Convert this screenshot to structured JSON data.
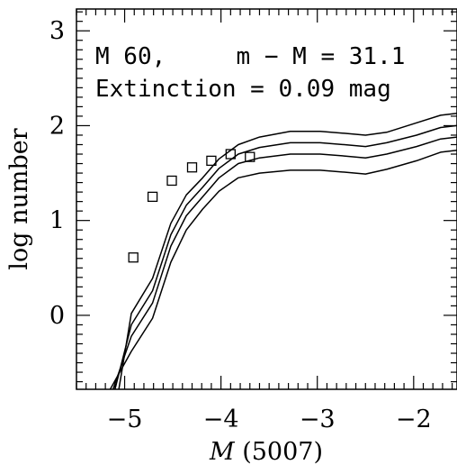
{
  "chart_data": {
    "type": "line",
    "xlabel_italic": "M",
    "xlabel_rest": " (5007)",
    "ylabel": "log number",
    "xlim": [
      -5.5,
      -1.55
    ],
    "ylim": [
      -0.78,
      3.23
    ],
    "x_ticks": [
      -5,
      -4,
      -3,
      -2
    ],
    "x_tick_labels": [
      "−5",
      "−4",
      "−3",
      "−2"
    ],
    "y_ticks": [
      0,
      1,
      2,
      3
    ],
    "y_tick_labels": [
      "0",
      "1",
      "2",
      "3"
    ],
    "annotations": [
      "M 60,     m − M = 31.1",
      "Extinction = 0.09 mag"
    ],
    "series": [
      {
        "style": "line",
        "x": [
          -5.06,
          -4.93,
          -4.71,
          -4.52,
          -4.36,
          -4.19,
          -4.02,
          -3.82,
          -3.6,
          -3.28,
          -2.97,
          -2.72,
          -2.5,
          -2.28,
          -1.97,
          -1.72,
          -1.55
        ],
        "values": [
          -0.78,
          0.02,
          0.39,
          0.97,
          1.27,
          1.45,
          1.65,
          1.8,
          1.88,
          1.94,
          1.94,
          1.92,
          1.9,
          1.93,
          2.03,
          2.11,
          2.13
        ]
      },
      {
        "style": "line",
        "x": [
          -5.1,
          -4.93,
          -4.71,
          -4.52,
          -4.36,
          -4.19,
          -4.02,
          -3.82,
          -3.6,
          -3.28,
          -2.97,
          -2.72,
          -2.5,
          -2.28,
          -1.97,
          -1.72,
          -1.55
        ],
        "values": [
          -0.78,
          -0.1,
          0.26,
          0.85,
          1.16,
          1.35,
          1.55,
          1.7,
          1.77,
          1.82,
          1.82,
          1.8,
          1.78,
          1.82,
          1.9,
          1.98,
          2.0
        ]
      },
      {
        "style": "line",
        "x": [
          -5.12,
          -4.93,
          -4.71,
          -4.52,
          -4.36,
          -4.19,
          -4.02,
          -3.82,
          -3.6,
          -3.28,
          -2.97,
          -2.72,
          -2.5,
          -2.28,
          -1.97,
          -1.72,
          -1.55
        ],
        "values": [
          -0.78,
          -0.22,
          0.13,
          0.73,
          1.05,
          1.25,
          1.45,
          1.6,
          1.66,
          1.7,
          1.7,
          1.68,
          1.66,
          1.7,
          1.78,
          1.86,
          1.88
        ]
      },
      {
        "style": "line",
        "x": [
          -5.15,
          -4.93,
          -4.71,
          -4.52,
          -4.36,
          -4.19,
          -4.02,
          -3.82,
          -3.6,
          -3.28,
          -2.97,
          -2.72,
          -2.5,
          -2.28,
          -1.97,
          -1.72,
          -1.55
        ],
        "values": [
          -0.78,
          -0.38,
          -0.03,
          0.56,
          0.9,
          1.12,
          1.31,
          1.45,
          1.5,
          1.53,
          1.53,
          1.51,
          1.49,
          1.54,
          1.63,
          1.72,
          1.74
        ]
      },
      {
        "style": "markers",
        "marker": "open-square",
        "x": [
          -4.91,
          -4.71,
          -4.51,
          -4.3,
          -4.1,
          -3.9,
          -3.7
        ],
        "values": [
          0.61,
          1.25,
          1.42,
          1.56,
          1.63,
          1.7,
          1.67
        ]
      }
    ],
    "grid": false,
    "colors": {
      "line": "#000000",
      "background": "#ffffff"
    }
  }
}
